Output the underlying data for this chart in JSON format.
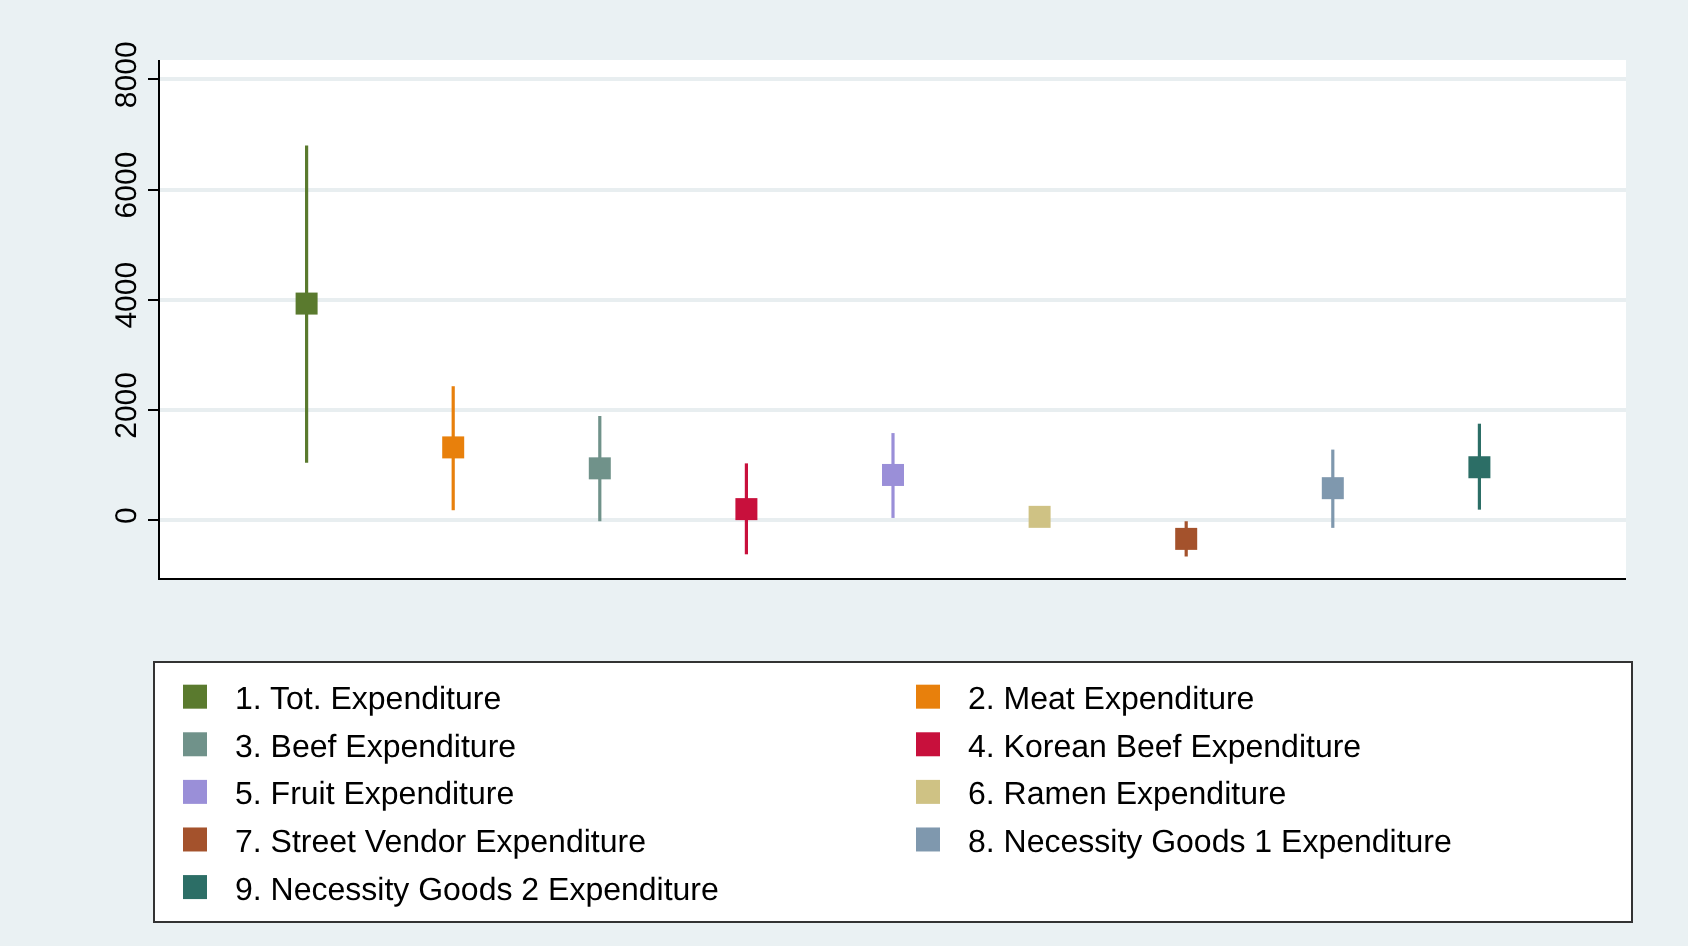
{
  "chart_data": {
    "type": "scatter",
    "marker": "square",
    "grid": "y",
    "legend": "bottom",
    "categories": [
      null,
      null,
      null,
      null,
      null,
      null,
      null,
      null,
      null
    ],
    "ylim": [
      -1050,
      8350
    ],
    "yticks": [
      0,
      2000,
      4000,
      6000,
      8000
    ],
    "tick_labels": "y",
    "series": [
      {
        "name": "1. Tot. Expenditure",
        "color": "#5a7a2e",
        "values": [
          3930,
          null,
          null,
          null,
          null,
          null,
          null,
          null,
          null
        ],
        "errors": [
          [
            1040,
            6800
          ],
          null,
          null,
          null,
          null,
          null,
          null,
          null,
          null
        ]
      },
      {
        "name": "2. Meat Expenditure",
        "color": "#e8800c",
        "values": [
          null,
          1320,
          null,
          null,
          null,
          null,
          null,
          null,
          null
        ],
        "errors": [
          null,
          [
            180,
            2430
          ],
          null,
          null,
          null,
          null,
          null,
          null,
          null
        ]
      },
      {
        "name": "3. Beef Expenditure",
        "color": "#70928a",
        "values": [
          null,
          null,
          940,
          null,
          null,
          null,
          null,
          null,
          null
        ],
        "errors": [
          null,
          null,
          [
            -20,
            1890
          ],
          null,
          null,
          null,
          null,
          null,
          null
        ]
      },
      {
        "name": "4. Korean Beef Expenditure",
        "color": "#c8103c",
        "values": [
          null,
          null,
          null,
          200,
          null,
          null,
          null,
          null,
          null
        ],
        "errors": [
          null,
          null,
          null,
          [
            -620,
            1030
          ],
          null,
          null,
          null,
          null,
          null
        ]
      },
      {
        "name": "5. Fruit Expenditure",
        "color": "#9a8fd8",
        "values": [
          null,
          null,
          null,
          null,
          820,
          null,
          null,
          null,
          null
        ],
        "errors": [
          null,
          null,
          null,
          null,
          [
            40,
            1580
          ],
          null,
          null,
          null,
          null
        ]
      },
      {
        "name": "6. Ramen Expenditure",
        "color": "#cfc284",
        "values": [
          null,
          null,
          null,
          null,
          null,
          60,
          null,
          null,
          null
        ]
      },
      {
        "name": "7. Street Vendor Expenditure",
        "color": "#a4522c",
        "values": [
          null,
          null,
          null,
          null,
          null,
          null,
          -340,
          null,
          null
        ],
        "errors": [
          null,
          null,
          null,
          null,
          null,
          null,
          [
            -660,
            -20
          ],
          null,
          null
        ]
      },
      {
        "name": "8. Necessity Goods 1 Expenditure",
        "color": "#7f98ae",
        "values": [
          null,
          null,
          null,
          null,
          null,
          null,
          null,
          580,
          null
        ],
        "errors": [
          null,
          null,
          null,
          null,
          null,
          null,
          null,
          [
            -140,
            1280
          ],
          null
        ]
      },
      {
        "name": "9. Necessity Goods 2 Expenditure",
        "color": "#2c6e66",
        "values": [
          null,
          null,
          null,
          null,
          null,
          null,
          null,
          null,
          960
        ],
        "errors": [
          null,
          null,
          null,
          null,
          null,
          null,
          null,
          null,
          [
            190,
            1750
          ]
        ]
      }
    ]
  }
}
